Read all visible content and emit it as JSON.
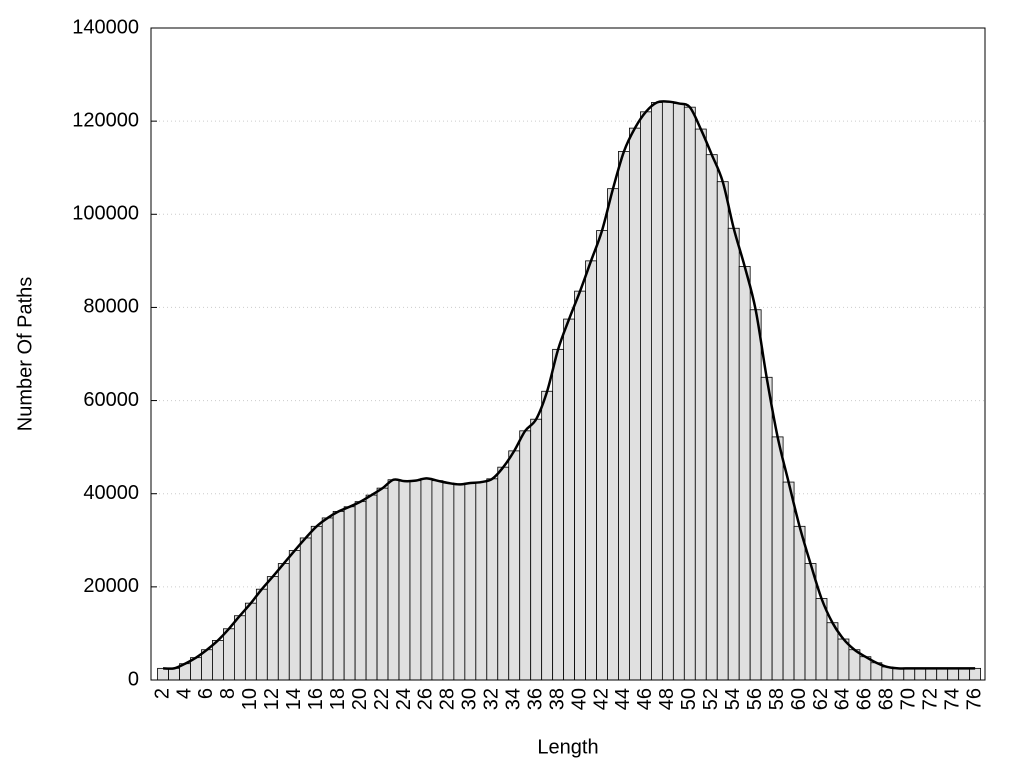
{
  "chart_data": {
    "type": "bar",
    "x_label": "Length",
    "y_label": "Number Of Paths",
    "x": [
      2,
      3,
      4,
      5,
      6,
      7,
      8,
      9,
      10,
      11,
      12,
      13,
      14,
      15,
      16,
      17,
      18,
      19,
      20,
      21,
      22,
      23,
      24,
      25,
      26,
      27,
      28,
      29,
      30,
      31,
      32,
      33,
      34,
      35,
      36,
      37,
      38,
      39,
      40,
      41,
      42,
      43,
      44,
      45,
      46,
      47,
      48,
      49,
      50,
      51,
      52,
      53,
      54,
      55,
      56,
      57,
      58,
      59,
      60,
      61,
      62,
      63,
      64,
      65,
      66,
      67,
      68,
      69,
      70,
      71,
      72,
      73,
      74,
      75,
      76
    ],
    "values": [
      2500,
      2500,
      3500,
      4800,
      6500,
      8500,
      11000,
      13800,
      16500,
      19500,
      22200,
      25000,
      27800,
      30500,
      33000,
      34800,
      36200,
      37200,
      38300,
      39700,
      41200,
      43000,
      42700,
      42800,
      43300,
      42800,
      42300,
      42000,
      42300,
      42500,
      43200,
      45700,
      49200,
      53500,
      56000,
      62000,
      71000,
      77500,
      83500,
      90000,
      96500,
      105500,
      113500,
      118500,
      122000,
      124000,
      124200,
      123800,
      123000,
      118300,
      112800,
      107000,
      97000,
      88800,
      79500,
      65000,
      52200,
      42500,
      33000,
      25000,
      17500,
      12300,
      8800,
      6500,
      5000,
      3700,
      2800,
      2500,
      2500,
      2500,
      2500,
      2500,
      2500,
      2500,
      2500
    ],
    "color": "#e0e0e0",
    "smooth_line": true,
    "line_color": "#000000",
    "xlim": [
      0.9,
      76.9
    ],
    "xticks": [
      2,
      4,
      6,
      8,
      10,
      12,
      14,
      16,
      18,
      20,
      22,
      24,
      26,
      28,
      30,
      32,
      34,
      36,
      38,
      40,
      42,
      44,
      46,
      48,
      50,
      52,
      54,
      56,
      58,
      60,
      62,
      64,
      66,
      68,
      70,
      72,
      74,
      76
    ],
    "ylim": [
      0,
      140000
    ],
    "yticks": [
      0,
      20000,
      40000,
      60000,
      80000,
      100000,
      120000,
      140000
    ],
    "grid": true
  }
}
